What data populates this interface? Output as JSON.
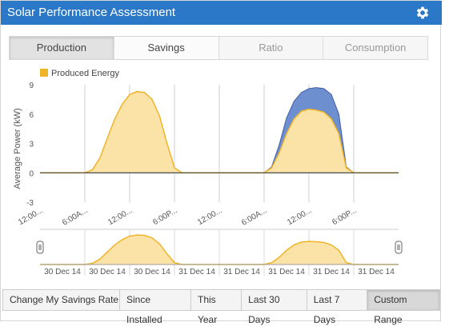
{
  "header": {
    "title": "Solar Performance Assessment",
    "settings_icon": "gear-icon"
  },
  "tabs": [
    {
      "label": "Production",
      "state": "active"
    },
    {
      "label": "Savings",
      "state": "normal"
    },
    {
      "label": "Ratio",
      "state": "disabled"
    },
    {
      "label": "Consumption",
      "state": "disabled"
    }
  ],
  "buttons": {
    "savings_rate": "Change My Savings Rate",
    "ranges": [
      "Since Installed",
      "This Year",
      "Last 30 Days",
      "Last 7 Days",
      "Custom Range"
    ],
    "active_range": "Custom Range"
  },
  "colors": {
    "fill": "#fbe3a8",
    "line": "#f0b429",
    "consumption": "#6e8fcf",
    "accent": "#2a78c7"
  },
  "chart_data": {
    "type": "area",
    "legend": {
      "label": "Produced Energy",
      "position": "top-left"
    },
    "ylabel": "Average Power (kW)",
    "ylim": [
      -3,
      9
    ],
    "yticks": [
      "9",
      "6",
      "3",
      "0",
      "-3"
    ],
    "xticks": [
      "12:00...",
      "6:00A...",
      "12:00...",
      "6:00P...",
      "12:00...",
      "6:00A...",
      "12:00...",
      "6:00P..."
    ],
    "navigator_labels": [
      "30 Dec 14",
      "30 Dec 14",
      "30 Dec 14",
      "31 Dec 14",
      "31 Dec 14",
      "31 Dec 14",
      "31 Dec 14",
      "31 Dec 14"
    ],
    "x_hours": [
      0,
      1,
      2,
      3,
      4,
      5,
      6,
      7,
      8,
      9,
      10,
      11,
      12,
      13,
      14,
      15,
      16,
      17,
      18,
      19,
      20,
      21,
      22,
      23,
      24,
      25,
      26,
      27,
      28,
      29,
      30,
      31,
      32,
      33,
      34,
      35,
      36,
      37,
      38,
      39,
      40,
      41,
      42,
      43,
      44,
      45,
      46,
      47,
      48
    ],
    "series": [
      {
        "name": "Produced Energy",
        "values": [
          0,
          0,
          0,
          0,
          0,
          0,
          0,
          0.3,
          1.5,
          3.5,
          5.5,
          7.0,
          8.0,
          8.3,
          8.2,
          7.5,
          5.8,
          3.0,
          0.5,
          0,
          0,
          0,
          0,
          0,
          0,
          0,
          0,
          0,
          0,
          0,
          0,
          0.5,
          2.0,
          4.0,
          5.5,
          6.3,
          6.5,
          6.4,
          6.2,
          5.5,
          4.0,
          0.5,
          0,
          0,
          0,
          0,
          0,
          0,
          0
        ]
      },
      {
        "name": "",
        "values": [
          0,
          0,
          0,
          0,
          0,
          0,
          0,
          0,
          0,
          0,
          0,
          0,
          0,
          0,
          0,
          0,
          0,
          0,
          0,
          0,
          0,
          0,
          0,
          0,
          0,
          0,
          0,
          0,
          0,
          0,
          0,
          0.6,
          2.8,
          5.6,
          7.3,
          8.2,
          8.6,
          8.7,
          8.6,
          8.0,
          6.0,
          0.6,
          0,
          0,
          0,
          0,
          0,
          0,
          0
        ]
      }
    ]
  }
}
